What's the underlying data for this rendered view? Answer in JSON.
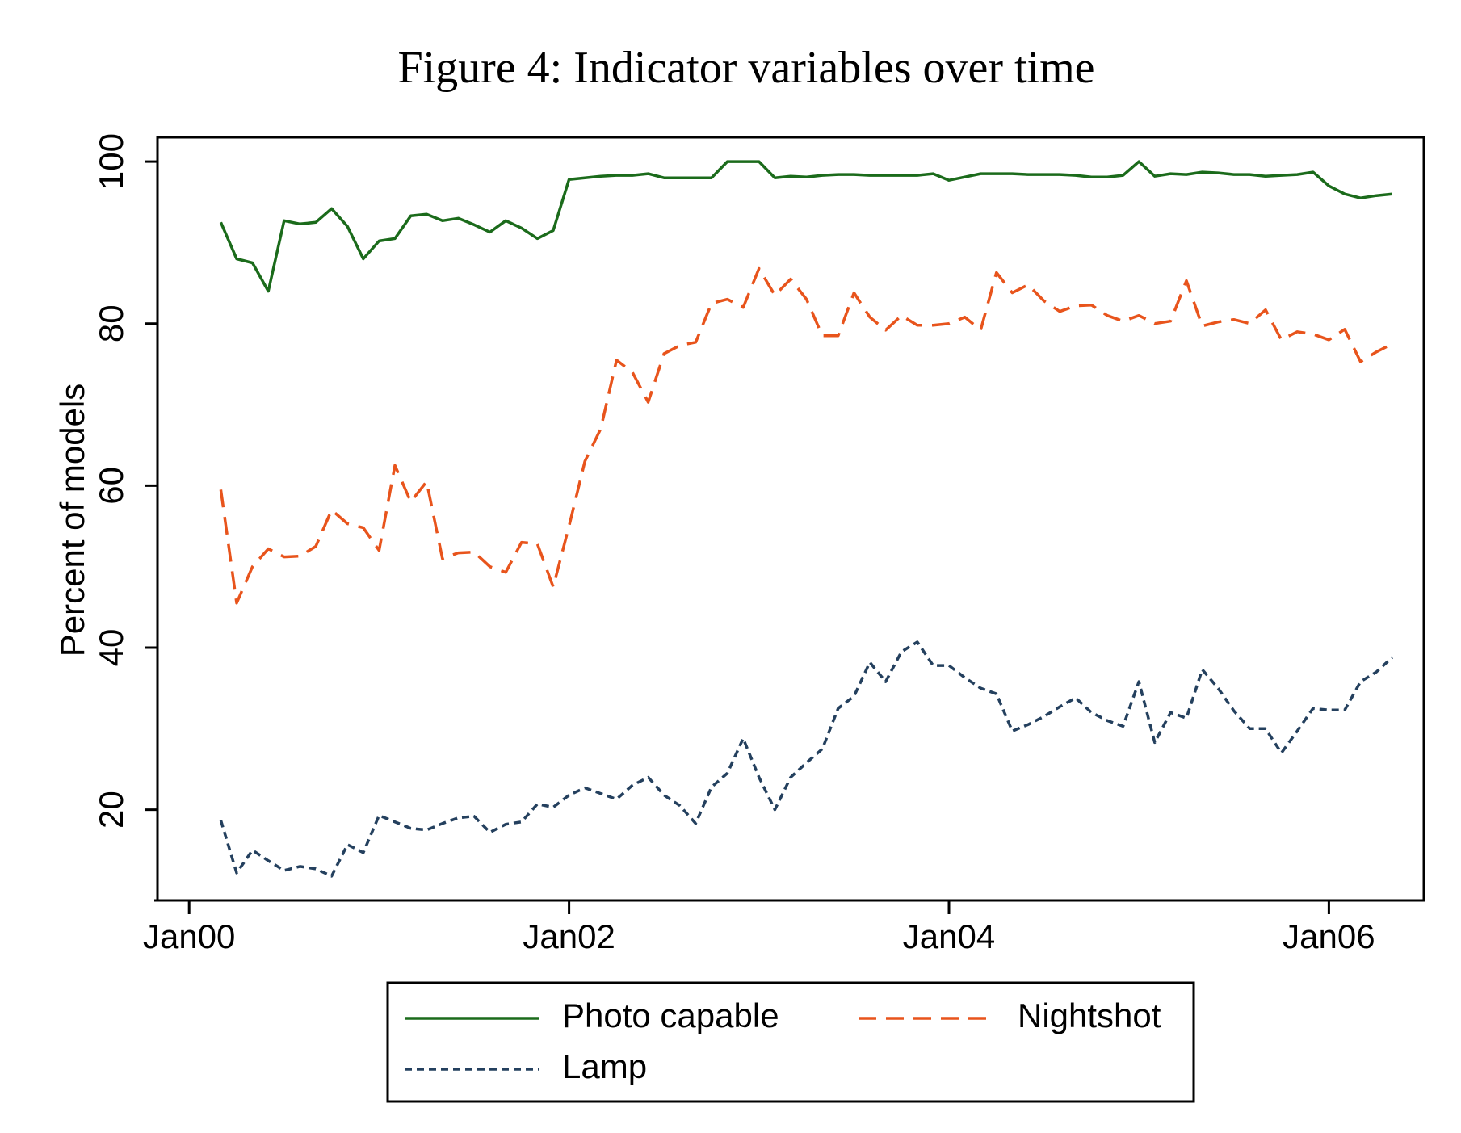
{
  "chart_data": {
    "type": "line",
    "title": "Figure 4: Indicator variables over time",
    "ylabel": "Percent of models",
    "x": [
      "2000-03",
      "2000-04",
      "2000-05",
      "2000-06",
      "2000-07",
      "2000-08",
      "2000-09",
      "2000-10",
      "2000-11",
      "2000-12",
      "2001-01",
      "2001-02",
      "2001-03",
      "2001-04",
      "2001-05",
      "2001-06",
      "2001-07",
      "2001-08",
      "2001-09",
      "2001-10",
      "2001-11",
      "2001-12",
      "2002-01",
      "2002-02",
      "2002-03",
      "2002-04",
      "2002-05",
      "2002-06",
      "2002-07",
      "2002-08",
      "2002-09",
      "2002-10",
      "2002-11",
      "2002-12",
      "2003-01",
      "2003-02",
      "2003-03",
      "2003-04",
      "2003-05",
      "2003-06",
      "2003-07",
      "2003-08",
      "2003-09",
      "2003-10",
      "2003-11",
      "2003-12",
      "2004-01",
      "2004-02",
      "2004-03",
      "2004-04",
      "2004-05",
      "2004-06",
      "2004-07",
      "2004-08",
      "2004-09",
      "2004-10",
      "2004-11",
      "2004-12",
      "2005-01",
      "2005-02",
      "2005-03",
      "2005-04",
      "2005-05",
      "2005-06",
      "2005-07",
      "2005-08",
      "2005-09",
      "2005-10",
      "2005-11",
      "2005-12",
      "2006-01",
      "2006-02",
      "2006-03",
      "2006-04",
      "2006-05"
    ],
    "series": [
      {
        "name": "Photo capable",
        "color": "#1b6b1b",
        "style": "solid",
        "values": [
          92.5,
          88,
          87.5,
          84,
          92.7,
          92.3,
          92.5,
          94.2,
          92,
          88,
          90.2,
          90.5,
          93.3,
          93.5,
          92.7,
          93,
          92.2,
          91.3,
          92.7,
          91.8,
          90.5,
          91.5,
          97.8,
          98,
          98.2,
          98.3,
          98.3,
          98.5,
          98,
          98,
          98,
          98,
          100,
          100,
          100,
          98,
          98.2,
          98.1,
          98.3,
          98.4,
          98.4,
          98.3,
          98.3,
          98.3,
          98.3,
          98.5,
          97.7,
          98.1,
          98.5,
          98.5,
          98.5,
          98.4,
          98.4,
          98.4,
          98.3,
          98.1,
          98.1,
          98.3,
          100,
          98.2,
          98.5,
          98.4,
          98.7,
          98.6,
          98.4,
          98.4,
          98.2,
          98.3,
          98.4,
          98.7,
          97,
          96,
          95.5,
          95.8,
          96
        ]
      },
      {
        "name": "Nightshot",
        "color": "#e8541c",
        "style": "dashed",
        "values": [
          59.5,
          45.5,
          50,
          52.2,
          51.2,
          51.3,
          52.5,
          57,
          55.3,
          54.8,
          52,
          62.5,
          58,
          60.5,
          51,
          51.7,
          51.8,
          50,
          49.3,
          53,
          52.8,
          47.5,
          55,
          63,
          67,
          75.5,
          74,
          70.3,
          76.3,
          77.3,
          77.7,
          82.5,
          83,
          82,
          86.8,
          83.5,
          85.5,
          83,
          78.5,
          78.5,
          83.8,
          80.8,
          79.2,
          81,
          79.8,
          79.8,
          80,
          80.8,
          79.2,
          86.3,
          83.8,
          84.8,
          82.8,
          81.5,
          82.2,
          82.3,
          81,
          80.3,
          81,
          80,
          80.3,
          85.3,
          79.7,
          80.2,
          80.5,
          80,
          81.7,
          78,
          79,
          78.7,
          78,
          79.3,
          75.3,
          76.5,
          77.5
        ]
      },
      {
        "name": "Lamp",
        "color": "#24405e",
        "style": "dotted",
        "values": [
          18.7,
          12.2,
          15,
          13.7,
          12.5,
          13,
          12.7,
          11.8,
          15.7,
          14.7,
          19.3,
          18.5,
          17.7,
          17.5,
          18.3,
          19,
          19.2,
          17.2,
          18.2,
          18.5,
          20.7,
          20.3,
          21.8,
          22.7,
          22,
          21.3,
          23,
          24,
          21.8,
          20.5,
          18.3,
          22.8,
          24.5,
          28.8,
          24,
          20,
          24,
          25.8,
          27.5,
          32.5,
          34,
          38.2,
          35.8,
          39.5,
          40.7,
          37.8,
          37.8,
          36.3,
          35,
          34.3,
          29.7,
          30.5,
          31.5,
          32.7,
          33.8,
          32,
          31,
          30.3,
          35.8,
          28.3,
          32,
          31.3,
          37.3,
          35,
          32.2,
          30,
          30,
          27,
          29.7,
          32.5,
          32.3,
          32.3,
          35.8,
          37,
          38.8
        ]
      }
    ],
    "xlim": [
      "1999-11",
      "2006-07"
    ],
    "xticks": [
      {
        "value": "2000-01",
        "label": "Jan00"
      },
      {
        "value": "2002-01",
        "label": "Jan02"
      },
      {
        "value": "2004-01",
        "label": "Jan04"
      },
      {
        "value": "2006-01",
        "label": "Jan06"
      }
    ],
    "ylim": [
      8.8,
      103
    ],
    "yticks": [
      20,
      40,
      60,
      80,
      100
    ],
    "grid": false,
    "legend": "bottom"
  }
}
